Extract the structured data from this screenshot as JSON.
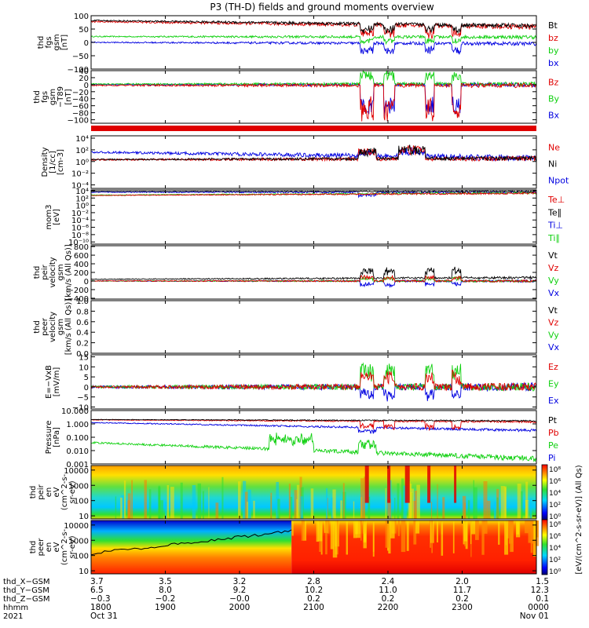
{
  "title": "P3 (TH-D) fields and ground moments overview",
  "colors": {
    "black": "#000000",
    "red": "#e00000",
    "green": "#10d010",
    "blue": "#0000e0"
  },
  "chart_data": [
    {
      "type": "line",
      "id": "fgs-gsm",
      "ylabel": [
        "thd",
        "fgs",
        "gsm",
        "[nT]"
      ],
      "yticks": [
        {
          "v": 100,
          "t": "100"
        },
        {
          "v": 50,
          "t": "50"
        },
        {
          "v": 0,
          "t": "0"
        },
        {
          "v": -50,
          "t": "−50"
        },
        {
          "v": -100,
          "t": "−100"
        }
      ],
      "ylim": [
        -100,
        100
      ],
      "legend": [
        {
          "t": "Bt",
          "c": "black"
        },
        {
          "t": "bz",
          "c": "red"
        },
        {
          "t": "by",
          "c": "green"
        },
        {
          "t": "bx",
          "c": "blue"
        }
      ]
    },
    {
      "type": "line",
      "id": "fgs-gsm-t89",
      "ylabel": [
        "thd",
        "fgs",
        "gsm",
        "−T89",
        "[nT]"
      ],
      "yticks": [
        {
          "v": 40,
          "t": "40"
        },
        {
          "v": 20,
          "t": "20"
        },
        {
          "v": 0,
          "t": "0"
        },
        {
          "v": -20,
          "t": "−20"
        },
        {
          "v": -40,
          "t": "−40"
        },
        {
          "v": -60,
          "t": "−60"
        },
        {
          "v": -80,
          "t": "−80"
        },
        {
          "v": -100,
          "t": "−100"
        }
      ],
      "ylim": [
        -110,
        40
      ],
      "legend": [
        {
          "t": "Bz",
          "c": "red"
        },
        {
          "t": "By",
          "c": "green"
        },
        {
          "t": "Bx",
          "c": "blue"
        }
      ]
    },
    {
      "type": "line",
      "id": "density",
      "ylabel": [
        "Density",
        "[1/cc]",
        "[cm-3]"
      ],
      "yticks": [
        {
          "v": 4,
          "t": "10⁴"
        },
        {
          "v": 2,
          "t": "10²"
        },
        {
          "v": 0,
          "t": "10⁰"
        },
        {
          "v": -2,
          "t": "10⁻²"
        },
        {
          "v": -4,
          "t": "10⁻⁴"
        }
      ],
      "ylim": [
        -4.6,
        4.4
      ],
      "scale": "log",
      "legend": [
        {
          "t": "Ne",
          "c": "red"
        },
        {
          "t": "Ni",
          "c": "black"
        },
        {
          "t": "Npot",
          "c": "blue"
        }
      ]
    },
    {
      "type": "line",
      "id": "temperature",
      "ylabel": [
        "mom3",
        "[eV]"
      ],
      "yticks": [
        {
          "v": 4,
          "t": "10⁴"
        },
        {
          "v": 2,
          "t": "10²"
        },
        {
          "v": 0,
          "t": "10⁰"
        },
        {
          "v": -2,
          "t": "10⁻²"
        },
        {
          "v": -4,
          "t": "10⁻⁴"
        },
        {
          "v": -6,
          "t": "10⁻⁶"
        },
        {
          "v": -8,
          "t": "10⁻⁸"
        },
        {
          "v": -10,
          "t": "10⁻¹⁰"
        }
      ],
      "ylim": [
        -10.6,
        4.2
      ],
      "scale": "log",
      "legend": [
        {
          "t": "Te⊥",
          "c": "red"
        },
        {
          "t": "Te∥",
          "c": "black"
        },
        {
          "t": "Ti⊥",
          "c": "blue"
        },
        {
          "t": "Ti∥",
          "c": "green"
        }
      ]
    },
    {
      "type": "line",
      "id": "peir-velocity",
      "ylabel": [
        "thd",
        "peir",
        "velocity",
        "gsm",
        "[km/s (All Qs)]"
      ],
      "yticks": [
        {
          "v": 800,
          "t": "800"
        },
        {
          "v": 600,
          "t": "600"
        },
        {
          "v": 400,
          "t": "400"
        },
        {
          "v": 200,
          "t": "200"
        },
        {
          "v": 0,
          "t": "0"
        },
        {
          "v": -200,
          "t": "−200"
        },
        {
          "v": -400,
          "t": "−400"
        }
      ],
      "ylim": [
        -420,
        820
      ],
      "legend": [
        {
          "t": "Vt",
          "c": "black"
        },
        {
          "t": "Vz",
          "c": "red"
        },
        {
          "t": "Vy",
          "c": "green"
        },
        {
          "t": "Vx",
          "c": "blue"
        }
      ]
    },
    {
      "type": "line",
      "id": "peer-velocity",
      "ylabel": [
        "thd",
        "peer",
        "velocity",
        "gsm",
        "[km/s (All Qs)]"
      ],
      "yticks": [
        {
          "v": 1.0,
          "t": "1.0"
        },
        {
          "v": 0.8,
          "t": "0.8"
        },
        {
          "v": 0.6,
          "t": "0.6"
        },
        {
          "v": 0.4,
          "t": "0.4"
        },
        {
          "v": 0.2,
          "t": "0.2"
        },
        {
          "v": 0.0,
          "t": "0.0"
        }
      ],
      "ylim": [
        0,
        1
      ],
      "legend": [
        {
          "t": "Vt",
          "c": "black"
        },
        {
          "t": "Vz",
          "c": "red"
        },
        {
          "t": "Vy",
          "c": "green"
        },
        {
          "t": "Vx",
          "c": "blue"
        }
      ]
    },
    {
      "type": "line",
      "id": "efield",
      "ylabel": [
        "E=−VxB",
        "[mV/m]"
      ],
      "yticks": [
        {
          "v": 15,
          "t": "15"
        },
        {
          "v": 10,
          "t": "10"
        },
        {
          "v": 5,
          "t": "5"
        },
        {
          "v": 0,
          "t": "0"
        },
        {
          "v": -5,
          "t": "−5"
        },
        {
          "v": -10,
          "t": "−10"
        }
      ],
      "ylim": [
        -11,
        16
      ],
      "legend": [
        {
          "t": "Ez",
          "c": "red"
        },
        {
          "t": "Ey",
          "c": "green"
        },
        {
          "t": "Ex",
          "c": "blue"
        }
      ]
    },
    {
      "type": "line",
      "id": "pressure",
      "ylabel": [
        "Pressure",
        "[nPa]"
      ],
      "yticks": [
        {
          "v": 1,
          "t": "10.000"
        },
        {
          "v": 0,
          "t": "1.000"
        },
        {
          "v": -1,
          "t": "0.100"
        },
        {
          "v": -2,
          "t": "0.010"
        },
        {
          "v": -3,
          "t": "0.001"
        }
      ],
      "ylim": [
        -3,
        1
      ],
      "scale": "log",
      "legend": [
        {
          "t": "Pt",
          "c": "black"
        },
        {
          "t": "Pb",
          "c": "red"
        },
        {
          "t": "Pe",
          "c": "green"
        },
        {
          "t": "Pi",
          "c": "blue"
        }
      ]
    },
    {
      "type": "heatmap",
      "id": "peir-eflux",
      "ylabel": [
        "thd",
        "peir",
        "en",
        "eV",
        "(cm^2-s-",
        "sr-eV)"
      ],
      "yticks": [
        {
          "v": 4,
          "t": "10000"
        },
        {
          "v": 3,
          "t": "1000"
        },
        {
          "v": 2,
          "t": "100"
        },
        {
          "v": 1,
          "t": "10"
        }
      ],
      "ylim": [
        0.8,
        4.3
      ],
      "scale": "log",
      "colorbar_ticks": [
        "10⁸",
        "10⁶",
        "10⁴",
        "10²",
        "10⁰"
      ]
    },
    {
      "type": "heatmap",
      "id": "peer-eflux",
      "ylabel": [
        "thd",
        "peer",
        "en",
        "eV",
        "(cm^2-s-",
        "sr-eV)"
      ],
      "yticks": [
        {
          "v": 4,
          "t": "10000"
        },
        {
          "v": 3,
          "t": "1000"
        },
        {
          "v": 2,
          "t": "100"
        },
        {
          "v": 1,
          "t": "10"
        }
      ],
      "ylim": [
        0.8,
        4.3
      ],
      "scale": "log",
      "colorbar_ticks": [
        "10⁸",
        "10⁶",
        "10⁴",
        "10²",
        "10⁰"
      ]
    }
  ],
  "colorbar_label": "[eV/(cm^2-s-sr-eV)] (All Qs)",
  "xaxis": {
    "xlim": [
      1800,
      2400
    ],
    "columns": [
      {
        "x": 1800,
        "vals": [
          "3.7",
          "6.5",
          "−0.3",
          "1800",
          "Oct 31"
        ]
      },
      {
        "x": 1900,
        "vals": [
          "3.5",
          "8.0",
          "−0.2",
          "1900",
          ""
        ]
      },
      {
        "x": 2000,
        "vals": [
          "3.2",
          "9.2",
          "−0.0",
          "2000",
          ""
        ]
      },
      {
        "x": 2100,
        "vals": [
          "2.8",
          "10.2",
          "0.2",
          "2100",
          ""
        ]
      },
      {
        "x": 2200,
        "vals": [
          "2.4",
          "11.0",
          "0.2",
          "2200",
          ""
        ]
      },
      {
        "x": 2300,
        "vals": [
          "2.0",
          "11.7",
          "0.2",
          "2300",
          ""
        ]
      },
      {
        "x": 2400,
        "vals": [
          "1.5",
          "12.3",
          "0.1",
          "0000",
          "Nov 01"
        ]
      }
    ],
    "row_labels": [
      "thd_X−GSM",
      "thd_Y−GSM",
      "thd_Z−GSM",
      "hhmm",
      "2021"
    ]
  }
}
